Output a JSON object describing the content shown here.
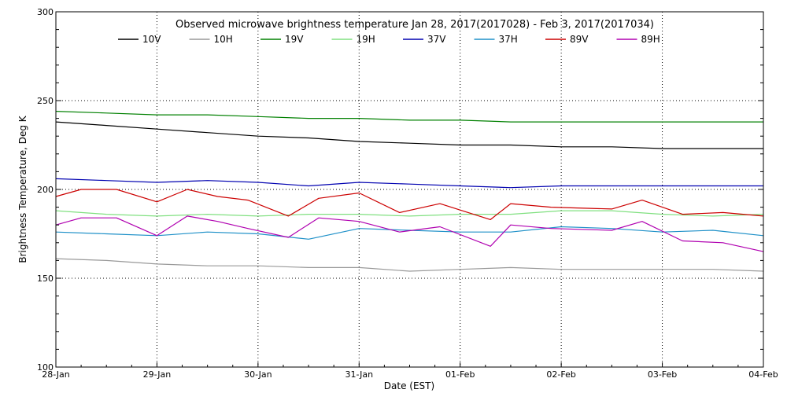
{
  "chart_data": {
    "type": "line",
    "title": "Observed microwave brightness temperature Jan 28, 2017(2017028) - Feb  3, 2017(2017034)",
    "xlabel": "Date (EST)",
    "ylabel": "Brightness Temperature, Deg K",
    "xlim": [
      0,
      7
    ],
    "ylim": [
      100,
      300
    ],
    "x_ticks": [
      0,
      1,
      2,
      3,
      4,
      5,
      6,
      7
    ],
    "x_tick_labels": [
      "28-Jan",
      "29-Jan",
      "30-Jan",
      "31-Jan",
      "01-Feb",
      "02-Feb",
      "03-Feb",
      "04-Feb"
    ],
    "y_ticks": [
      100,
      150,
      200,
      250,
      300
    ],
    "y_tick_labels": [
      "100",
      "150",
      "200",
      "250",
      "300"
    ],
    "grid": "dotted",
    "legend_position": "top",
    "series": [
      {
        "name": "10V",
        "color": "#000000",
        "x": [
          0,
          0.5,
          1,
          1.5,
          2,
          2.5,
          3,
          3.5,
          4,
          4.5,
          5,
          5.5,
          6,
          6.5,
          7
        ],
        "values": [
          238,
          236,
          234,
          232,
          230,
          229,
          227,
          226,
          225,
          225,
          224,
          224,
          223,
          223,
          223
        ]
      },
      {
        "name": "10H",
        "color": "#999999",
        "x": [
          0,
          0.5,
          1,
          1.5,
          2,
          2.5,
          3,
          3.5,
          4,
          4.5,
          5,
          5.5,
          6,
          6.5,
          7
        ],
        "values": [
          161,
          160,
          158,
          157,
          157,
          156,
          156,
          154,
          155,
          156,
          155,
          155,
          155,
          155,
          154
        ]
      },
      {
        "name": "19V",
        "color": "#008000",
        "x": [
          0,
          0.5,
          1,
          1.5,
          2,
          2.5,
          3,
          3.5,
          4,
          4.5,
          5,
          5.5,
          6,
          6.5,
          7
        ],
        "values": [
          244,
          243,
          242,
          242,
          241,
          240,
          240,
          239,
          239,
          238,
          238,
          238,
          238,
          238,
          238
        ]
      },
      {
        "name": "19H",
        "color": "#80e080",
        "x": [
          0,
          0.5,
          1,
          1.5,
          2,
          2.5,
          3,
          3.5,
          4,
          4.5,
          5,
          5.5,
          6,
          6.5,
          7
        ],
        "values": [
          188,
          186,
          185,
          186,
          185,
          186,
          186,
          185,
          186,
          186,
          188,
          188,
          186,
          185,
          186
        ]
      },
      {
        "name": "37V",
        "color": "#0000b0",
        "x": [
          0,
          0.5,
          1,
          1.5,
          2,
          2.5,
          3,
          3.5,
          4,
          4.5,
          5,
          5.5,
          6,
          6.5,
          7
        ],
        "values": [
          206,
          205,
          204,
          205,
          204,
          202,
          204,
          203,
          202,
          201,
          202,
          202,
          202,
          202,
          202
        ]
      },
      {
        "name": "37H",
        "color": "#1e90c8",
        "x": [
          0,
          0.5,
          1,
          1.5,
          2,
          2.5,
          3,
          3.5,
          4,
          4.5,
          5,
          5.5,
          6,
          6.5,
          7
        ],
        "values": [
          176,
          175,
          174,
          176,
          175,
          172,
          178,
          177,
          176,
          176,
          179,
          178,
          176,
          177,
          174
        ]
      },
      {
        "name": "89V",
        "color": "#cc0000",
        "x": [
          0,
          0.25,
          0.6,
          1,
          1.3,
          1.6,
          1.9,
          2.3,
          2.6,
          3,
          3.4,
          3.8,
          4.3,
          4.5,
          4.9,
          5.5,
          5.8,
          6.2,
          6.6,
          7
        ],
        "values": [
          196,
          200,
          200,
          193,
          200,
          196,
          194,
          185,
          195,
          198,
          187,
          192,
          183,
          192,
          190,
          189,
          194,
          186,
          187,
          185
        ]
      },
      {
        "name": "89H",
        "color": "#b000b0",
        "x": [
          0,
          0.25,
          0.6,
          1,
          1.3,
          1.6,
          1.9,
          2.3,
          2.6,
          3,
          3.4,
          3.8,
          4.3,
          4.5,
          4.9,
          5.5,
          5.8,
          6.2,
          6.6,
          7
        ],
        "values": [
          180,
          184,
          184,
          174,
          185,
          182,
          178,
          173,
          184,
          182,
          176,
          179,
          168,
          180,
          178,
          177,
          182,
          171,
          170,
          165
        ]
      }
    ]
  }
}
